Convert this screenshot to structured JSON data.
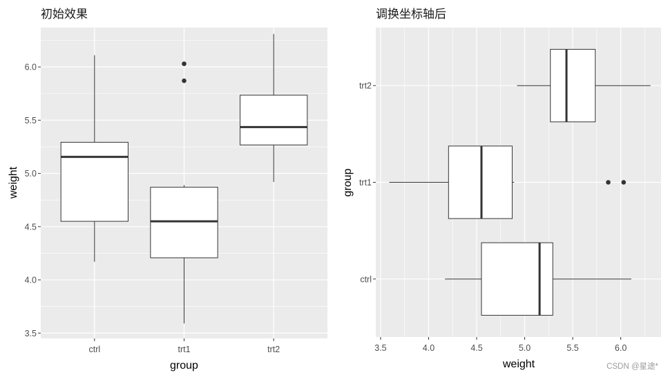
{
  "figure": {
    "background": "#ffffff",
    "panel_background": "#EBEBEB",
    "grid_color": "#FFFFFF",
    "box_fill": "#FFFFFF",
    "line_color": "#333333",
    "watermark": "CSDN @星途*"
  },
  "chart_data": [
    {
      "type": "boxplot",
      "orientation": "vertical",
      "title": "初始效果",
      "xlabel": "group",
      "ylabel": "weight",
      "categories": [
        "ctrl",
        "trt1",
        "trt2"
      ],
      "yticks": [
        3.5,
        4.0,
        4.5,
        5.0,
        5.5,
        6.0
      ],
      "ytick_labels": [
        "3.5",
        "4.0",
        "4.5",
        "5.0",
        "5.5",
        "6.0"
      ],
      "ylim": [
        3.45,
        6.37
      ],
      "grid": true,
      "boxes": [
        {
          "group": "ctrl",
          "whisker_low": 4.17,
          "q1": 4.55,
          "median": 5.155,
          "q3": 5.2925,
          "whisker_high": 6.11,
          "outliers": []
        },
        {
          "group": "trt1",
          "whisker_low": 3.59,
          "q1": 4.2075,
          "median": 4.55,
          "q3": 4.87,
          "whisker_high": 4.89,
          "outliers": [
            5.87,
            6.03
          ]
        },
        {
          "group": "trt2",
          "whisker_low": 4.92,
          "q1": 5.2675,
          "median": 5.435,
          "q3": 5.735,
          "whisker_high": 6.31,
          "outliers": []
        }
      ]
    },
    {
      "type": "boxplot",
      "orientation": "horizontal",
      "title": "调换坐标轴后",
      "xlabel": "weight",
      "ylabel": "group",
      "categories": [
        "ctrl",
        "trt1",
        "trt2"
      ],
      "xticks": [
        3.5,
        4.0,
        4.5,
        5.0,
        5.5,
        6.0
      ],
      "xtick_labels": [
        "3.5",
        "4.0",
        "4.5",
        "5.0",
        "5.5",
        "6.0"
      ],
      "xlim": [
        3.45,
        6.42
      ],
      "grid": true,
      "boxes": [
        {
          "group": "ctrl",
          "whisker_low": 4.17,
          "q1": 4.55,
          "median": 5.155,
          "q3": 5.2925,
          "whisker_high": 6.11,
          "outliers": []
        },
        {
          "group": "trt1",
          "whisker_low": 3.59,
          "q1": 4.2075,
          "median": 4.55,
          "q3": 4.87,
          "whisker_high": 4.89,
          "outliers": [
            5.87,
            6.03
          ]
        },
        {
          "group": "trt2",
          "whisker_low": 4.92,
          "q1": 5.2675,
          "median": 5.435,
          "q3": 5.735,
          "whisker_high": 6.31,
          "outliers": []
        }
      ]
    }
  ]
}
